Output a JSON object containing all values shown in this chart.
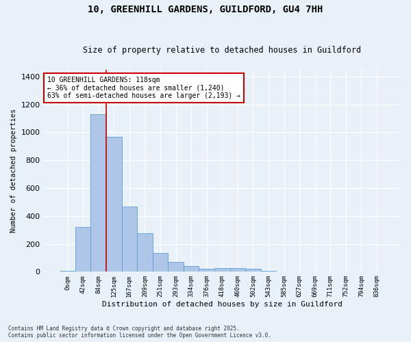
{
  "title": "10, GREENHILL GARDENS, GUILDFORD, GU4 7HH",
  "subtitle": "Size of property relative to detached houses in Guildford",
  "xlabel": "Distribution of detached houses by size in Guildford",
  "ylabel": "Number of detached properties",
  "footer": "Contains HM Land Registry data © Crown copyright and database right 2025.\nContains public sector information licensed under the Open Government Licence v3.0.",
  "categories": [
    "0sqm",
    "42sqm",
    "84sqm",
    "125sqm",
    "167sqm",
    "209sqm",
    "251sqm",
    "293sqm",
    "334sqm",
    "376sqm",
    "418sqm",
    "460sqm",
    "502sqm",
    "543sqm",
    "585sqm",
    "627sqm",
    "669sqm",
    "711sqm",
    "752sqm",
    "794sqm",
    "836sqm"
  ],
  "values": [
    8,
    320,
    1130,
    965,
    468,
    278,
    135,
    68,
    40,
    22,
    25,
    25,
    20,
    5,
    3,
    2,
    1,
    1,
    1,
    0,
    0
  ],
  "bar_color": "#aec6e8",
  "bar_edge_color": "#5b9bd5",
  "background_color": "#e8f0f8",
  "grid_color": "#ffffff",
  "vline_x": 2.5,
  "vline_color": "#cc0000",
  "annotation_text": "10 GREENHILL GARDENS: 118sqm\n← 36% of detached houses are smaller (1,240)\n63% of semi-detached houses are larger (2,193) →",
  "annotation_box_color": "#cc0000",
  "annotation_box_fill": "#ffffff",
  "ylim": [
    0,
    1450
  ],
  "yticks": [
    0,
    200,
    400,
    600,
    800,
    1000,
    1200,
    1400
  ]
}
